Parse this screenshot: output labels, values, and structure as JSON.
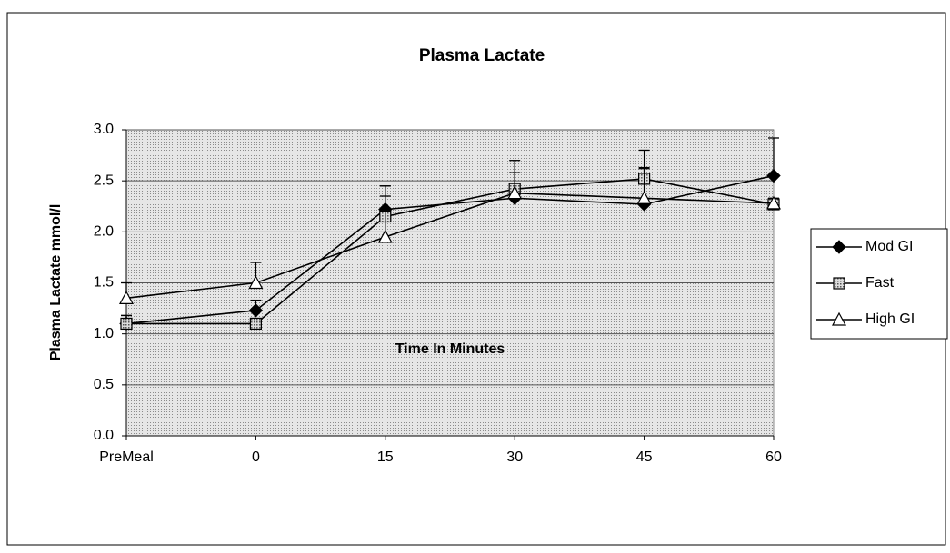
{
  "chart_data": {
    "type": "line",
    "title": "Plasma Lactate",
    "x_label": "Time In Minutes",
    "y_label": "Plasma Lactate mmol/l",
    "categories": [
      "PreMeal",
      "0",
      "15",
      "30",
      "45",
      "60"
    ],
    "series": [
      {
        "name": "Mod GI",
        "color": "#000000",
        "marker": "diamond",
        "values": [
          1.1,
          1.23,
          2.22,
          2.33,
          2.27,
          2.55
        ],
        "errors": [
          0.08,
          0.1,
          0.23,
          0.25,
          0.35,
          0.37
        ]
      },
      {
        "name": "Fast",
        "color": "#000000",
        "marker": "square",
        "values": [
          1.1,
          1.1,
          2.15,
          2.42,
          2.52,
          2.27
        ],
        "errors": [
          0.08,
          0.05,
          0.3,
          0.28,
          0.28,
          0.05
        ]
      },
      {
        "name": "High GI",
        "color": "#000000",
        "marker": "triangle",
        "values": [
          1.35,
          1.5,
          1.95,
          2.38,
          2.33,
          2.28
        ],
        "errors": [
          0.15,
          0.2,
          0.4,
          0.2,
          0.3,
          0.05
        ]
      }
    ],
    "ylim": [
      0,
      3
    ],
    "yticks": [
      {
        "value": 0,
        "label": "0.0"
      },
      {
        "value": 0.5,
        "label": "0.5"
      },
      {
        "value": 1,
        "label": "1.0"
      },
      {
        "value": 1.5,
        "label": "1.5"
      },
      {
        "value": 2,
        "label": "2.0"
      },
      {
        "value": 2.5,
        "label": "2.5"
      },
      {
        "value": 3,
        "label": "3.0"
      }
    ],
    "grid": true,
    "legend": "right"
  }
}
